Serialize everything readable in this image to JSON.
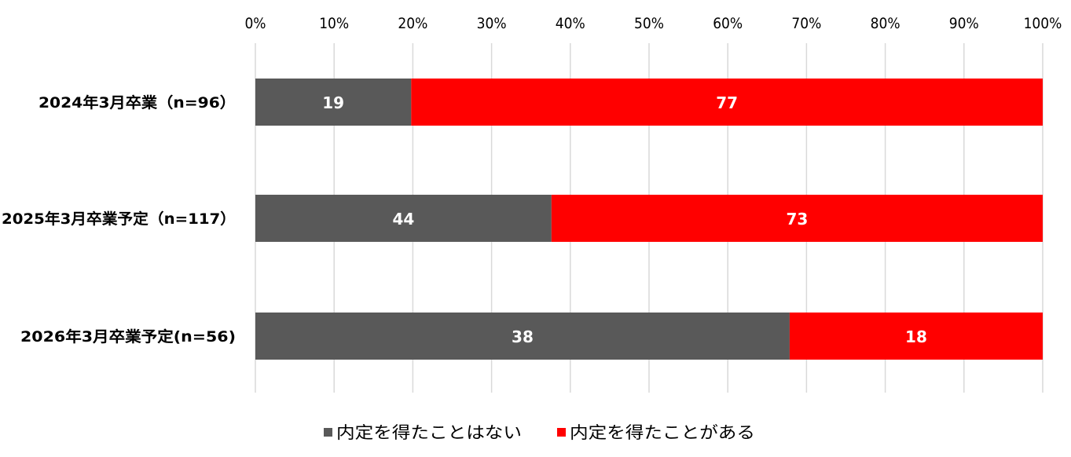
{
  "chart_data": {
    "type": "bar",
    "orientation": "horizontal",
    "stacked": "percent",
    "categories": [
      "2024年3月卒業（n=96）",
      "2025年3月卒業予定（n=117）",
      "2026年3月卒業予定(n=56)"
    ],
    "series": [
      {
        "name": "内定を得たことはない",
        "values": [
          19,
          44,
          38
        ],
        "color": "#595959"
      },
      {
        "name": "内定を得たことがある",
        "values": [
          77,
          73,
          18
        ],
        "color": "#ff0000"
      }
    ],
    "xticks": [
      "0%",
      "10%",
      "20%",
      "30%",
      "40%",
      "50%",
      "60%",
      "70%",
      "80%",
      "90%",
      "100%"
    ],
    "xlim": [
      0,
      100
    ],
    "x_axis_position": "top",
    "grid": true,
    "legend_position": "bottom",
    "data_labels": true
  }
}
